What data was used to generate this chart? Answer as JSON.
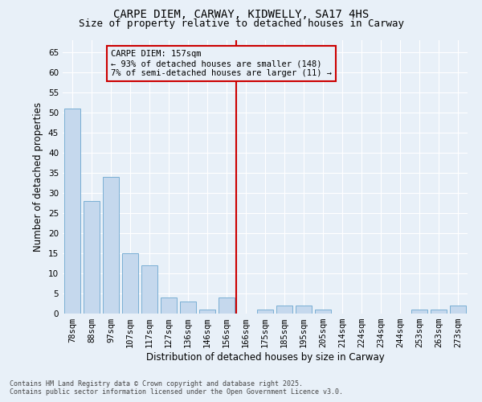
{
  "title": "CARPE DIEM, CARWAY, KIDWELLY, SA17 4HS",
  "subtitle": "Size of property relative to detached houses in Carway",
  "xlabel": "Distribution of detached houses by size in Carway",
  "ylabel": "Number of detached properties",
  "categories": [
    "78sqm",
    "88sqm",
    "97sqm",
    "107sqm",
    "117sqm",
    "127sqm",
    "136sqm",
    "146sqm",
    "156sqm",
    "166sqm",
    "175sqm",
    "185sqm",
    "195sqm",
    "205sqm",
    "214sqm",
    "224sqm",
    "234sqm",
    "244sqm",
    "253sqm",
    "263sqm",
    "273sqm"
  ],
  "values": [
    51,
    28,
    34,
    15,
    12,
    4,
    3,
    1,
    4,
    0,
    1,
    2,
    2,
    1,
    0,
    0,
    0,
    0,
    1,
    1,
    2
  ],
  "bar_color": "#c5d8ed",
  "bar_edge_color": "#7aafd4",
  "vline_x": 8.5,
  "vline_color": "#cc0000",
  "annotation_text": "CARPE DIEM: 157sqm\n← 93% of detached houses are smaller (148)\n7% of semi-detached houses are larger (11) →",
  "annotation_box_facecolor": "#e8f0f8",
  "annotation_box_edgecolor": "#cc0000",
  "ylim": [
    0,
    68
  ],
  "yticks": [
    0,
    5,
    10,
    15,
    20,
    25,
    30,
    35,
    40,
    45,
    50,
    55,
    60,
    65
  ],
  "background_color": "#e8f0f8",
  "grid_color": "#ffffff",
  "footer_line1": "Contains HM Land Registry data © Crown copyright and database right 2025.",
  "footer_line2": "Contains public sector information licensed under the Open Government Licence v3.0.",
  "title_fontsize": 10,
  "subtitle_fontsize": 9,
  "axis_label_fontsize": 8.5,
  "tick_fontsize": 7.5,
  "annotation_fontsize": 7.5,
  "footer_fontsize": 6
}
